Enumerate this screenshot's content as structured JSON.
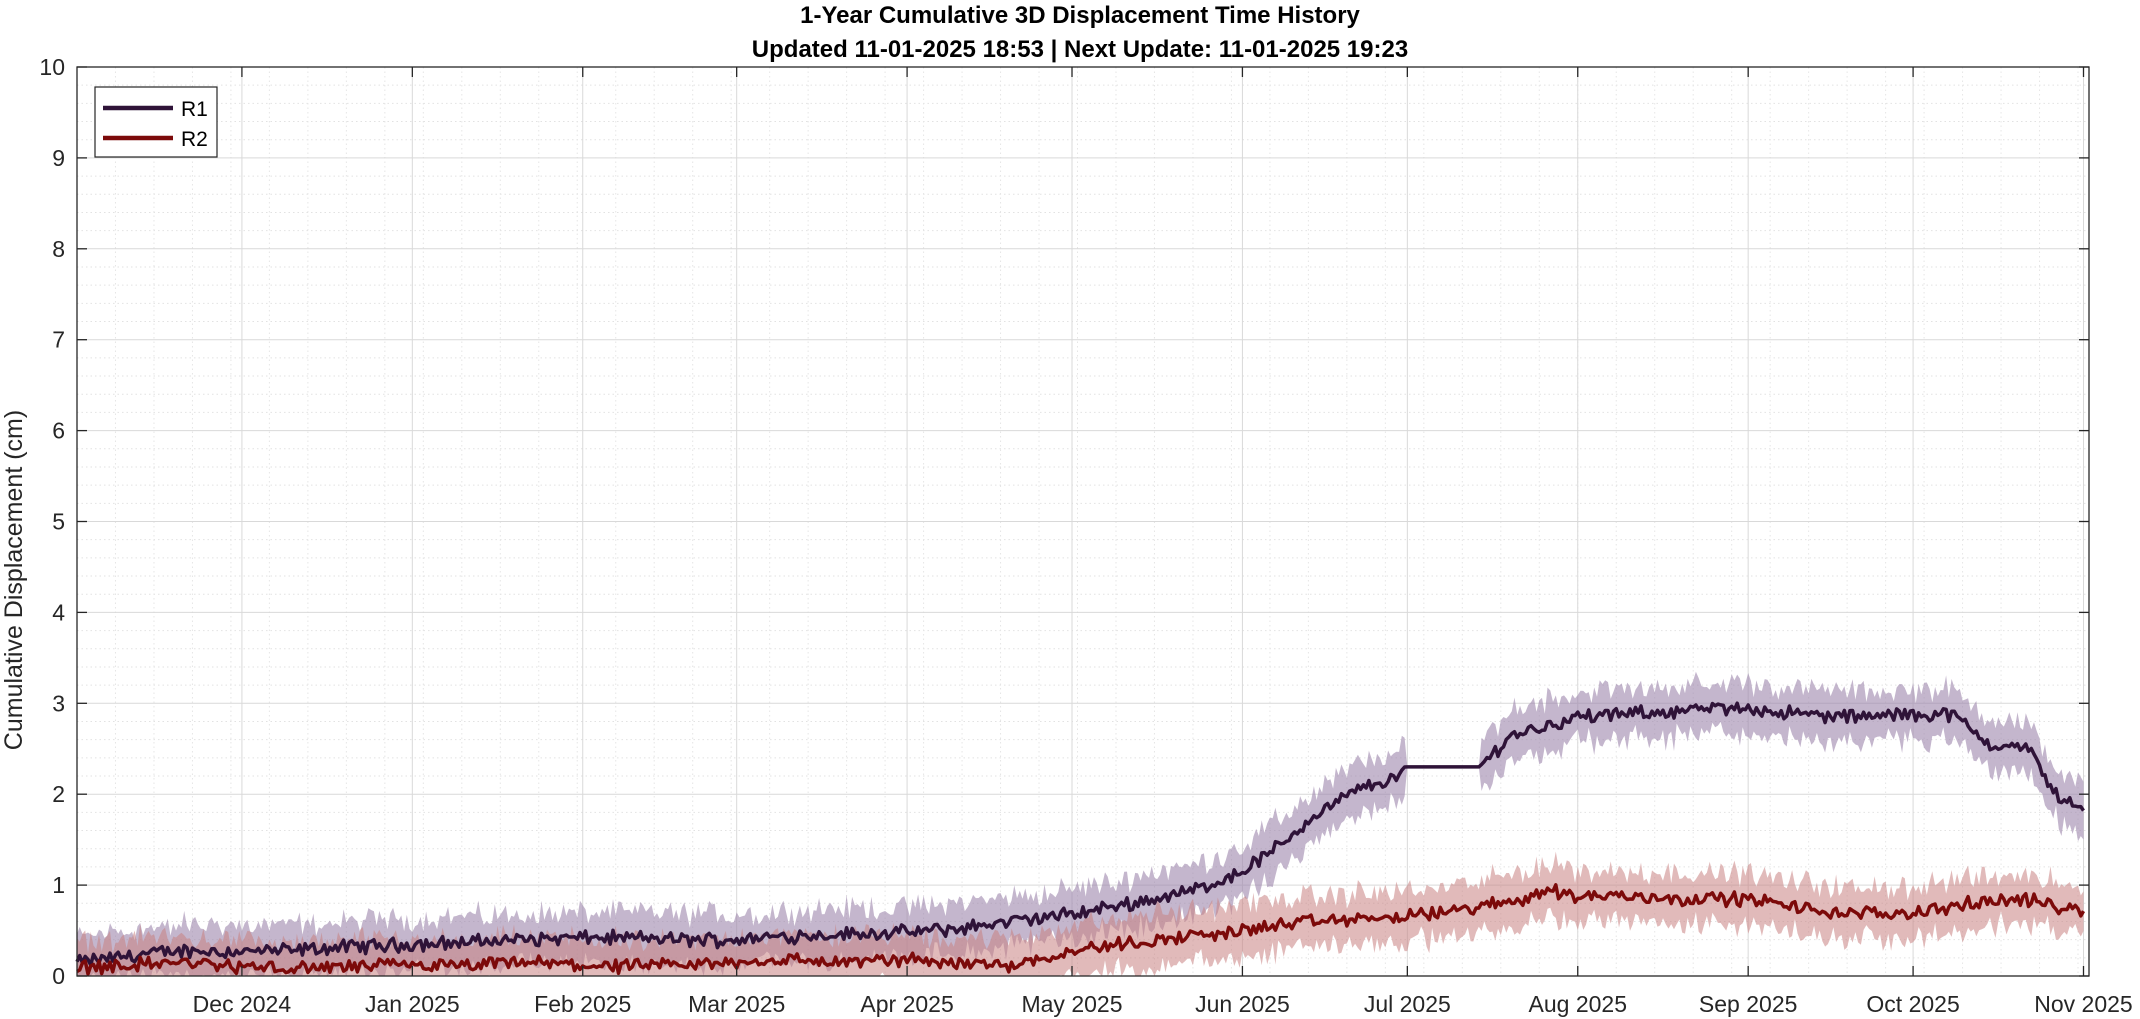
{
  "chart_data": {
    "type": "line",
    "title": "1-Year Cumulative 3D Displacement Time History",
    "subtitle": "Updated 11-01-2025 18:53  |  Next Update: 11-01-2025 19:23",
    "xlabel": "",
    "ylabel": "Cumulative Displacement (cm)",
    "xlim": [
      "2024-11-01",
      "2025-11-02"
    ],
    "ylim": [
      0,
      10
    ],
    "x_ticks": [
      {
        "label": "Dec 2024",
        "date": "2024-12-01"
      },
      {
        "label": "Jan 2025",
        "date": "2025-01-01"
      },
      {
        "label": "Feb 2025",
        "date": "2025-02-01"
      },
      {
        "label": "Mar 2025",
        "date": "2025-03-01"
      },
      {
        "label": "Apr 2025",
        "date": "2025-04-01"
      },
      {
        "label": "May 2025",
        "date": "2025-05-01"
      },
      {
        "label": "Jun 2025",
        "date": "2025-06-01"
      },
      {
        "label": "Jul 2025",
        "date": "2025-07-01"
      },
      {
        "label": "Aug 2025",
        "date": "2025-08-01"
      },
      {
        "label": "Sep 2025",
        "date": "2025-09-01"
      },
      {
        "label": "Oct 2025",
        "date": "2025-10-01"
      },
      {
        "label": "Nov 2025",
        "date": "2025-11-01"
      }
    ],
    "y_ticks": [
      0,
      1,
      2,
      3,
      4,
      5,
      6,
      7,
      8,
      9,
      10
    ],
    "grid": true,
    "minor_grid": true,
    "legend_position": "top-left",
    "series": [
      {
        "name": "R1",
        "color": "#2f1338",
        "band_color": "#9c86ac",
        "band_opacity": 0.6,
        "points": [
          [
            "2024-11-01",
            0.15
          ],
          [
            "2024-11-10",
            0.22
          ],
          [
            "2024-11-20",
            0.28
          ],
          [
            "2024-12-01",
            0.27
          ],
          [
            "2024-12-10",
            0.28
          ],
          [
            "2024-12-20",
            0.32
          ],
          [
            "2025-01-01",
            0.35
          ],
          [
            "2025-01-10",
            0.37
          ],
          [
            "2025-01-20",
            0.4
          ],
          [
            "2025-02-01",
            0.42
          ],
          [
            "2025-02-10",
            0.42
          ],
          [
            "2025-02-20",
            0.4
          ],
          [
            "2025-03-01",
            0.4
          ],
          [
            "2025-03-10",
            0.44
          ],
          [
            "2025-03-20",
            0.46
          ],
          [
            "2025-04-01",
            0.48
          ],
          [
            "2025-04-10",
            0.52
          ],
          [
            "2025-04-20",
            0.6
          ],
          [
            "2025-05-01",
            0.68
          ],
          [
            "2025-05-10",
            0.78
          ],
          [
            "2025-05-20",
            0.9
          ],
          [
            "2025-05-25",
            0.98
          ],
          [
            "2025-06-01",
            1.15
          ],
          [
            "2025-06-08",
            1.45
          ],
          [
            "2025-06-15",
            1.8
          ],
          [
            "2025-06-22",
            2.05
          ],
          [
            "2025-06-30",
            2.2
          ],
          [
            "2025-07-01",
            2.3
          ],
          [
            "2025-07-13",
            2.3
          ],
          [
            "2025-07-14",
            2.3
          ],
          [
            "2025-07-20",
            2.65
          ],
          [
            "2025-08-01",
            2.85
          ],
          [
            "2025-08-10",
            2.88
          ],
          [
            "2025-08-20",
            2.92
          ],
          [
            "2025-09-01",
            2.95
          ],
          [
            "2025-09-10",
            2.88
          ],
          [
            "2025-09-20",
            2.85
          ],
          [
            "2025-10-01",
            2.88
          ],
          [
            "2025-10-08",
            2.88
          ],
          [
            "2025-10-15",
            2.55
          ],
          [
            "2025-10-22",
            2.5
          ],
          [
            "2025-10-27",
            2.0
          ],
          [
            "2025-11-01",
            1.8
          ]
        ]
      },
      {
        "name": "R2",
        "color": "#7c0a0a",
        "band_color": "#c98282",
        "band_opacity": 0.55,
        "points": [
          [
            "2024-11-01",
            0.1
          ],
          [
            "2024-11-10",
            0.12
          ],
          [
            "2024-11-20",
            0.15
          ],
          [
            "2024-12-01",
            0.1
          ],
          [
            "2024-12-10",
            0.08
          ],
          [
            "2024-12-20",
            0.1
          ],
          [
            "2025-01-01",
            0.12
          ],
          [
            "2025-01-10",
            0.1
          ],
          [
            "2025-01-20",
            0.15
          ],
          [
            "2025-02-01",
            0.12
          ],
          [
            "2025-02-10",
            0.1
          ],
          [
            "2025-02-20",
            0.12
          ],
          [
            "2025-03-01",
            0.15
          ],
          [
            "2025-03-10",
            0.18
          ],
          [
            "2025-03-20",
            0.15
          ],
          [
            "2025-04-01",
            0.18
          ],
          [
            "2025-04-10",
            0.15
          ],
          [
            "2025-04-20",
            0.12
          ],
          [
            "2025-05-01",
            0.28
          ],
          [
            "2025-05-10",
            0.35
          ],
          [
            "2025-05-20",
            0.42
          ],
          [
            "2025-06-01",
            0.5
          ],
          [
            "2025-06-10",
            0.58
          ],
          [
            "2025-06-20",
            0.62
          ],
          [
            "2025-07-01",
            0.65
          ],
          [
            "2025-07-10",
            0.72
          ],
          [
            "2025-07-20",
            0.82
          ],
          [
            "2025-07-27",
            0.95
          ],
          [
            "2025-08-01",
            0.88
          ],
          [
            "2025-08-10",
            0.88
          ],
          [
            "2025-08-20",
            0.85
          ],
          [
            "2025-09-01",
            0.85
          ],
          [
            "2025-09-10",
            0.75
          ],
          [
            "2025-09-20",
            0.68
          ],
          [
            "2025-10-01",
            0.7
          ],
          [
            "2025-10-10",
            0.78
          ],
          [
            "2025-10-20",
            0.85
          ],
          [
            "2025-11-01",
            0.72
          ]
        ]
      }
    ]
  }
}
